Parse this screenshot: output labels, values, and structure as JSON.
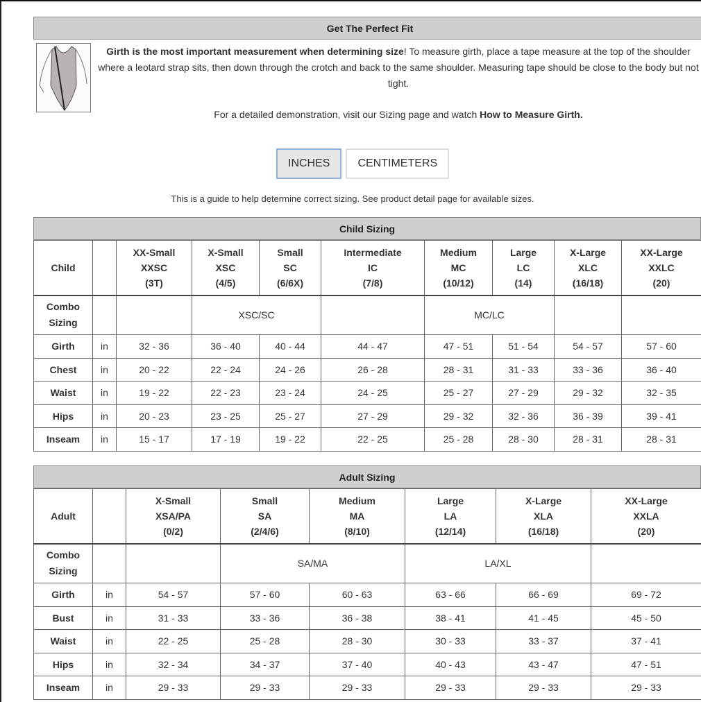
{
  "header": {
    "title": "Get The Perfect Fit"
  },
  "intro": {
    "bold_lead": "Girth is the most important measurement when determining size",
    "text": "! To measure girth, place a tape measure at the top of the shoulder where a leotard strap sits, then down through the crotch and back to the same shoulder. Measuring tape should be close to the body but not tight.",
    "demo_text": "For a detailed demonstration, visit our Sizing page and watch ",
    "demo_link": "How to Measure Girth."
  },
  "units": {
    "inches": "INCHES",
    "centimeters": "CENTIMETERS",
    "selected": "INCHES"
  },
  "guide": "This is a guide to help determine correct sizing. See product detail page for available sizes.",
  "child": {
    "title": "Child Sizing",
    "corner": "Child",
    "sizes": [
      [
        "XX-Small",
        "XXSC",
        "(3T)"
      ],
      [
        "X-Small",
        "XSC",
        "(4/5)"
      ],
      [
        "Small",
        "SC",
        "(6/6X)"
      ],
      [
        "Intermediate",
        "IC",
        "(7/8)"
      ],
      [
        "Medium",
        "MC",
        "(10/12)"
      ],
      [
        "Large",
        "LC",
        "(14)"
      ],
      [
        "X-Large",
        "XLC",
        "(16/18)"
      ],
      [
        "XX-Large",
        "XXLC",
        "(20)"
      ]
    ],
    "combo_label": "Combo Sizing",
    "combo": [
      {
        "text": "",
        "span": 1
      },
      {
        "text": "XSC/SC",
        "span": 2
      },
      {
        "text": "",
        "span": 1
      },
      {
        "text": "MC/LC",
        "span": 2
      },
      {
        "text": "",
        "span": 1
      },
      {
        "text": "",
        "span": 1
      }
    ],
    "rows": [
      {
        "label": "Girth",
        "unit": "in",
        "values": [
          "32 - 36",
          "36 - 40",
          "40 - 44",
          "44 - 47",
          "47 - 51",
          "51 - 54",
          "54 - 57",
          "57 - 60"
        ]
      },
      {
        "label": "Chest",
        "unit": "in",
        "values": [
          "20 - 22",
          "22 - 24",
          "24 - 26",
          "26 - 28",
          "28 - 31",
          "31 - 33",
          "33 - 36",
          "36 - 40"
        ]
      },
      {
        "label": "Waist",
        "unit": "in",
        "values": [
          "19 - 22",
          "22 - 23",
          "23 - 24",
          "24 - 25",
          "25 - 27",
          "27 - 29",
          "29 - 32",
          "32 - 35"
        ]
      },
      {
        "label": "Hips",
        "unit": "in",
        "values": [
          "20 - 23",
          "23 - 25",
          "25 - 27",
          "27 - 29",
          "29 - 32",
          "32 - 36",
          "36 - 39",
          "39 - 41"
        ]
      },
      {
        "label": "Inseam",
        "unit": "in",
        "values": [
          "15 - 17",
          "17 - 19",
          "19 - 22",
          "22 - 25",
          "25 - 28",
          "28 - 30",
          "28 - 31",
          "28 - 31"
        ]
      }
    ]
  },
  "adult": {
    "title": "Adult Sizing",
    "corner": "Adult",
    "sizes": [
      [
        "X-Small",
        "XSA/PA",
        "(0/2)"
      ],
      [
        "Small",
        "SA",
        "(2/4/6)"
      ],
      [
        "Medium",
        "MA",
        "(8/10)"
      ],
      [
        "Large",
        "LA",
        "(12/14)"
      ],
      [
        "X-Large",
        "XLA",
        "(16/18)"
      ],
      [
        "XX-Large",
        "XXLA",
        "(20)"
      ]
    ],
    "combo_label": "Combo Sizing",
    "combo": [
      {
        "text": "",
        "span": 1
      },
      {
        "text": "SA/MA",
        "span": 2
      },
      {
        "text": "LA/XL",
        "span": 2
      },
      {
        "text": "",
        "span": 1
      }
    ],
    "rows": [
      {
        "label": "Girth",
        "unit": "in",
        "values": [
          "54 - 57",
          "57 - 60",
          "60 - 63",
          "63 - 66",
          "66 - 69",
          "69 - 72"
        ]
      },
      {
        "label": "Bust",
        "unit": "in",
        "values": [
          "31 - 33",
          "33 - 36",
          "36 - 38",
          "38 - 41",
          "41 - 45",
          "45 - 50"
        ]
      },
      {
        "label": "Waist",
        "unit": "in",
        "values": [
          "22 - 25",
          "25 - 28",
          "28 - 30",
          "30 - 33",
          "33 - 37",
          "37 - 41"
        ]
      },
      {
        "label": "Hips",
        "unit": "in",
        "values": [
          "32 - 34",
          "34 - 37",
          "37 - 40",
          "40 - 43",
          "43 - 47",
          "47 - 51"
        ]
      },
      {
        "label": "Inseam",
        "unit": "in",
        "values": [
          "29 - 33",
          "29 - 33",
          "29 - 33",
          "29 - 33",
          "29 - 33",
          "29 - 33"
        ]
      }
    ]
  }
}
